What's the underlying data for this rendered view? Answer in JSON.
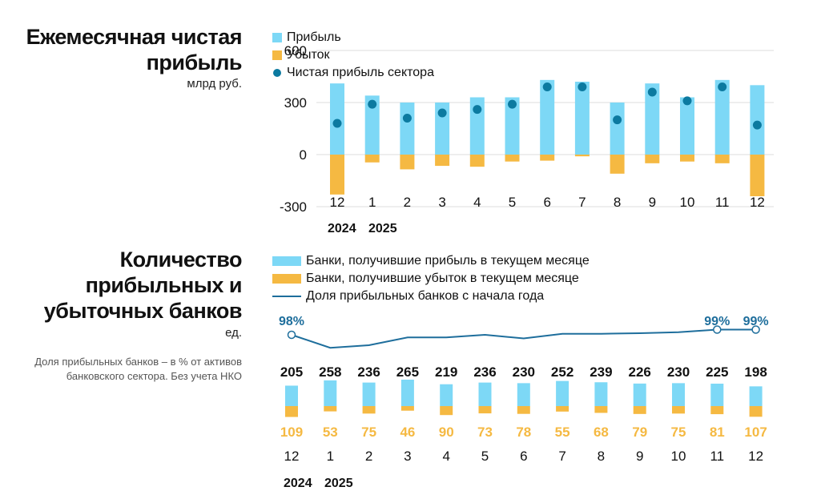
{
  "colors": {
    "profit": "#7DD8F6",
    "loss": "#F5B942",
    "net": "#0C7AA0",
    "line": "#1E6E9C",
    "text": "#111111"
  },
  "chart_data": [
    {
      "type": "bar",
      "title": "Ежемесячная чистая прибыль",
      "unit": "млрд руб.",
      "legend": [
        "Прибыль",
        "Убыток",
        "Чистая прибыль сектора"
      ],
      "categories": [
        "12",
        "1",
        "2",
        "3",
        "4",
        "5",
        "6",
        "7",
        "8",
        "9",
        "10",
        "11",
        "12"
      ],
      "years": [
        "2024",
        "2025"
      ],
      "yticks": [
        "600",
        "300",
        "0",
        "-300"
      ],
      "ylim": [
        -300,
        600
      ],
      "series": [
        {
          "name": "Прибыль",
          "values": [
            410,
            340,
            300,
            300,
            330,
            330,
            430,
            420,
            300,
            410,
            330,
            430,
            400
          ]
        },
        {
          "name": "Убыток",
          "values": [
            -230,
            -45,
            -85,
            -65,
            -70,
            -40,
            -35,
            -10,
            -110,
            -50,
            -40,
            -50,
            -240
          ]
        },
        {
          "name": "Чистая прибыль сектора",
          "values": [
            180,
            290,
            210,
            240,
            260,
            290,
            390,
            390,
            200,
            360,
            310,
            390,
            170
          ]
        }
      ]
    },
    {
      "type": "bar",
      "title": "Количество прибыльных и убыточных банков",
      "unit": "ед.",
      "note": "Доля прибыльных банков – в % от активов банковского сектора. Без учета НКО",
      "legend": [
        "Банки, получившие прибыль в текущем месяце",
        "Банки, получившие убыток в текущем месяце",
        "Доля прибыльных банков с начала года"
      ],
      "categories": [
        "12",
        "1",
        "2",
        "3",
        "4",
        "5",
        "6",
        "7",
        "8",
        "9",
        "10",
        "11",
        "12"
      ],
      "years": [
        "2024",
        "2025"
      ],
      "series": [
        {
          "name": "Банки, получившие прибыль в текущем месяце",
          "values": [
            205,
            258,
            236,
            265,
            219,
            236,
            230,
            252,
            239,
            226,
            230,
            225,
            198
          ]
        },
        {
          "name": "Банки, получившие убыток в текущем месяце",
          "values": [
            109,
            53,
            75,
            46,
            90,
            73,
            78,
            55,
            68,
            79,
            75,
            81,
            107
          ]
        },
        {
          "name": "Доля прибыльных банков с начала года",
          "values": [
            98,
            95.5,
            96,
            97.5,
            97.5,
            98,
            97.3,
            98.2,
            98.2,
            98.3,
            98.5,
            99,
            99
          ]
        }
      ],
      "line_labels": [
        {
          "index": 0,
          "text": "98%"
        },
        {
          "index": 11,
          "text": "99%"
        },
        {
          "index": 12,
          "text": "99%"
        }
      ]
    }
  ]
}
